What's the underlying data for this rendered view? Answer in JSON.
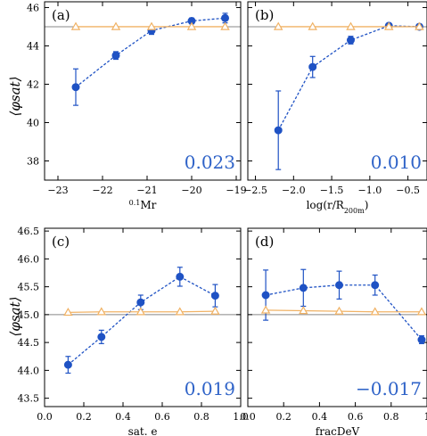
{
  "y_axis_label": "⟨φsat⟩",
  "colors": {
    "blue": "#1f52c4",
    "orange": "#f0b265",
    "refline": "#888888",
    "coef": "#2f63c8"
  },
  "chart_data": [
    {
      "type": "line",
      "panel_label": "(a)",
      "xlabel_sup": "0.1",
      "xlabel": "Mr",
      "coefficient": "0.023",
      "xlim": [
        -23.3,
        -18.9
      ],
      "ylim": [
        37.0,
        46.3
      ],
      "x_ticks": [
        -23,
        -22,
        -21,
        -20,
        -19
      ],
      "x_tick_labels": [
        "−23",
        "−22",
        "−21",
        "−20",
        "−19"
      ],
      "y_ticks": [
        38,
        40,
        42,
        44,
        46
      ],
      "y_tick_labels": [
        "38",
        "40",
        "42",
        "44",
        "46"
      ],
      "reference_line": 45,
      "series": [
        {
          "style": "dashed-circle",
          "color": "blue",
          "x": [
            -22.6,
            -21.7,
            -20.9,
            -20.0,
            -19.25
          ],
          "y": [
            41.85,
            43.5,
            44.8,
            45.3,
            45.45
          ],
          "err": [
            0.95,
            0.2,
            0.2,
            0.15,
            0.25
          ]
        },
        {
          "style": "solid-triangle",
          "color": "orange",
          "x": [
            -22.6,
            -21.7,
            -20.9,
            -20.0,
            -19.25
          ],
          "y": [
            45.0,
            45.0,
            45.0,
            45.0,
            45.0
          ],
          "err": [
            0,
            0,
            0,
            0,
            0
          ]
        }
      ]
    },
    {
      "type": "line",
      "panel_label": "(b)",
      "xlabel_pre": "log(r/R",
      "xlabel_sub": "200m",
      "xlabel_post": ")",
      "coefficient": "0.010",
      "xlim": [
        -2.6,
        -0.25
      ],
      "ylim": [
        37.0,
        46.3
      ],
      "x_ticks": [
        -2.5,
        -2.0,
        -1.5,
        -1.0,
        -0.5
      ],
      "x_tick_labels": [
        "−2.5",
        "−2.0",
        "−1.5",
        "−1.0",
        "−0.5"
      ],
      "y_ticks": [
        38,
        40,
        42,
        44,
        46
      ],
      "y_tick_labels": [],
      "reference_line": 45,
      "series": [
        {
          "style": "dashed-circle",
          "color": "blue",
          "x": [
            -2.2,
            -1.75,
            -1.25,
            -0.75,
            -0.35
          ],
          "y": [
            39.6,
            42.9,
            44.3,
            45.05,
            45.0
          ],
          "err": [
            2.05,
            0.55,
            0.2,
            0.1,
            0.1
          ]
        },
        {
          "style": "solid-triangle",
          "color": "orange",
          "x": [
            -2.2,
            -1.75,
            -1.25,
            -0.75,
            -0.35
          ],
          "y": [
            45.0,
            45.0,
            45.0,
            45.0,
            45.0
          ],
          "err": [
            0,
            0,
            0,
            0,
            0
          ]
        }
      ]
    },
    {
      "type": "line",
      "panel_label": "(c)",
      "xlabel": "sat. e",
      "coefficient": "0.019",
      "xlim": [
        0.0,
        1.0
      ],
      "ylim": [
        43.35,
        46.55
      ],
      "x_ticks": [
        0.0,
        0.2,
        0.4,
        0.6,
        0.8,
        1.0
      ],
      "x_tick_labels": [
        "0.0",
        "0.2",
        "0.4",
        "0.6",
        "0.8",
        "1.0"
      ],
      "y_ticks": [
        43.5,
        44.0,
        44.5,
        45.0,
        45.5,
        46.0,
        46.5
      ],
      "y_tick_labels": [
        "43.5",
        "44.0",
        "44.5",
        "45.0",
        "45.5",
        "46.0",
        "46.5"
      ],
      "reference_line": 45,
      "series": [
        {
          "style": "dashed-circle",
          "color": "blue",
          "x": [
            0.12,
            0.29,
            0.49,
            0.69,
            0.87
          ],
          "y": [
            44.1,
            44.6,
            45.22,
            45.68,
            45.34
          ],
          "err": [
            0.15,
            0.12,
            0.13,
            0.17,
            0.2
          ]
        },
        {
          "style": "solid-triangle",
          "color": "orange",
          "x": [
            0.12,
            0.29,
            0.49,
            0.69,
            0.87
          ],
          "y": [
            45.04,
            45.05,
            45.05,
            45.05,
            45.06
          ],
          "err": [
            0,
            0,
            0,
            0,
            0
          ]
        }
      ]
    },
    {
      "type": "line",
      "panel_label": "(d)",
      "xlabel": "fracDeV",
      "coefficient": "−0.017",
      "xlim": [
        0.0,
        1.0
      ],
      "ylim": [
        43.35,
        46.55
      ],
      "x_ticks": [
        0.0,
        0.2,
        0.4,
        0.6,
        0.8,
        1.0
      ],
      "x_tick_labels": [
        "0.0",
        "0.2",
        "0.4",
        "0.6",
        "0.8",
        "1"
      ],
      "y_ticks": [
        43.5,
        44.0,
        44.5,
        45.0,
        45.5,
        46.0,
        46.5
      ],
      "y_tick_labels": [],
      "reference_line": 45,
      "series": [
        {
          "style": "dashed-circle",
          "color": "blue",
          "x": [
            0.1,
            0.31,
            0.51,
            0.71,
            0.97
          ],
          "y": [
            45.35,
            45.48,
            45.53,
            45.53,
            44.55
          ],
          "err": [
            0.45,
            0.33,
            0.25,
            0.18,
            0.07
          ]
        },
        {
          "style": "solid-triangle",
          "color": "orange",
          "x": [
            0.1,
            0.31,
            0.51,
            0.71,
            0.97
          ],
          "y": [
            45.08,
            45.07,
            45.06,
            45.05,
            45.05
          ],
          "err": [
            0,
            0,
            0,
            0,
            0
          ]
        }
      ]
    }
  ]
}
